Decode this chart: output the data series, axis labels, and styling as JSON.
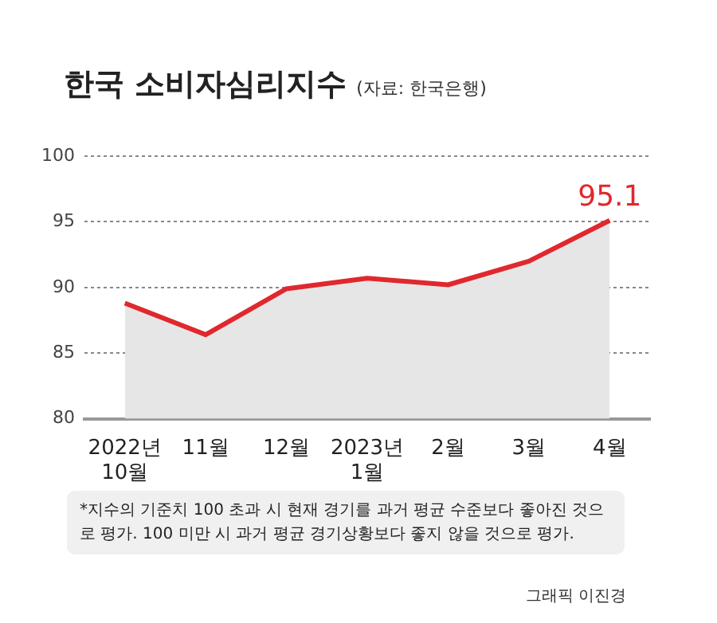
{
  "chart_data": {
    "type": "area",
    "title": "한국 소비자심리지수",
    "subtitle": "(자료: 한국은행)",
    "categories": [
      "2022년\n10월",
      "11월",
      "12월",
      "2023년\n1월",
      "2월",
      "3월",
      "4월"
    ],
    "series": [
      {
        "color": "#e0282e",
        "values": [
          88.8,
          86.4,
          89.9,
          90.7,
          90.2,
          92.0,
          95.1
        ],
        "value_labels": [
          null,
          null,
          null,
          null,
          null,
          null,
          "95.1"
        ]
      }
    ],
    "ylim": [
      80,
      100
    ],
    "yticks": [
      80,
      85,
      90,
      95,
      100
    ],
    "grid": "y",
    "legend": false,
    "marker": "none",
    "line_style": "solid",
    "annotations": [
      "*지수의 기준치 100 초과 시 현재 경기를 과거 평균 수준보다 좋아진 것으로 평가.  100 미만 시 과거 평균 경기상황보다 좋지 않을 것으로 평가.",
      "그래픽 이진경"
    ]
  }
}
